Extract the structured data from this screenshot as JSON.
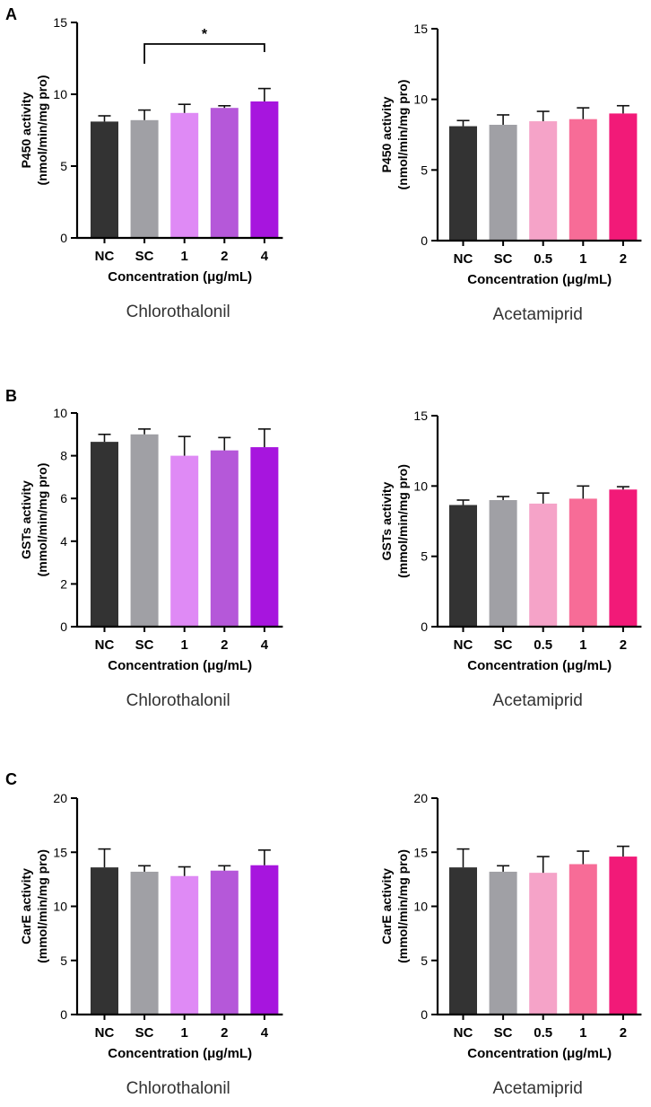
{
  "panel_labels": [
    "A",
    "B",
    "C"
  ],
  "chart_data": [
    {
      "type": "bar",
      "panel": "A",
      "title": "Chlorothalonil",
      "xlabel": "Concentration (μg/mL)",
      "ylabel_line1": "P450 activity",
      "ylabel_line2": "(nmol/min/mg pro)",
      "categories": [
        "NC",
        "SC",
        "1",
        "2",
        "4"
      ],
      "values": [
        8.1,
        8.2,
        8.7,
        9.05,
        9.5
      ],
      "errors": [
        0.4,
        0.7,
        0.6,
        0.15,
        0.9
      ],
      "colors": [
        "#333333",
        "#a0a0a5",
        "#df8af5",
        "#b558d9",
        "#a715de"
      ],
      "ylim": [
        0,
        15
      ],
      "yticks": [
        0,
        5,
        10,
        15
      ],
      "ytick_labels": [
        "0",
        "5",
        "10",
        "15"
      ],
      "significance": {
        "from": 1,
        "to": 4,
        "label": "*",
        "level": 13.5
      }
    },
    {
      "type": "bar",
      "panel": "A",
      "title": "Acetamiprid",
      "xlabel": "Concentration (μg/mL)",
      "ylabel_line1": "P450 activity",
      "ylabel_line2": "(nmol/min/mg pro)",
      "categories": [
        "NC",
        "SC",
        "0.5",
        "1",
        "2"
      ],
      "values": [
        8.1,
        8.2,
        8.45,
        8.6,
        9.0
      ],
      "errors": [
        0.4,
        0.7,
        0.7,
        0.8,
        0.55
      ],
      "colors": [
        "#333333",
        "#a0a0a5",
        "#f5a3c8",
        "#f76c97",
        "#f21a78"
      ],
      "ylim": [
        0,
        15
      ],
      "yticks": [
        0,
        5,
        10,
        15
      ],
      "ytick_labels": [
        "0",
        "5",
        "10",
        "15"
      ]
    },
    {
      "type": "bar",
      "panel": "B",
      "title": "Chlorothalonil",
      "xlabel": "Concentration (μg/mL)",
      "ylabel_line1": "GSTs activity",
      "ylabel_line2": "(mmol/min/mg pro)",
      "categories": [
        "NC",
        "SC",
        "1",
        "2",
        "4"
      ],
      "values": [
        8.65,
        9.0,
        8.0,
        8.25,
        8.4
      ],
      "errors": [
        0.35,
        0.25,
        0.9,
        0.6,
        0.85
      ],
      "colors": [
        "#333333",
        "#a0a0a5",
        "#df8af5",
        "#b558d9",
        "#a715de"
      ],
      "ylim": [
        0,
        10
      ],
      "yticks": [
        0,
        2,
        4,
        6,
        8,
        10
      ],
      "ytick_labels": [
        "0",
        "2",
        "4",
        "6",
        "8",
        "10"
      ]
    },
    {
      "type": "bar",
      "panel": "B",
      "title": "Acetamiprid",
      "xlabel": "Concentration (μg/mL)",
      "ylabel_line1": "GSTs activity",
      "ylabel_line2": "(mmol/min/mg pro)",
      "categories": [
        "NC",
        "SC",
        "0.5",
        "1",
        "2"
      ],
      "values": [
        8.65,
        9.0,
        8.75,
        9.1,
        9.75
      ],
      "errors": [
        0.35,
        0.25,
        0.75,
        0.9,
        0.2
      ],
      "colors": [
        "#333333",
        "#a0a0a5",
        "#f5a3c8",
        "#f76c97",
        "#f21a78"
      ],
      "ylim": [
        0,
        15
      ],
      "yticks": [
        0,
        5,
        10,
        15
      ],
      "ytick_labels": [
        "0",
        "5",
        "10",
        "15"
      ]
    },
    {
      "type": "bar",
      "panel": "C",
      "title": "Chlorothalonil",
      "xlabel": "Concentration (μg/mL)",
      "ylabel_line1": "CarE activity",
      "ylabel_line2": "(mmol/min/mg pro)",
      "categories": [
        "NC",
        "SC",
        "1",
        "2",
        "4"
      ],
      "values": [
        13.6,
        13.2,
        12.8,
        13.3,
        13.8
      ],
      "errors": [
        1.7,
        0.55,
        0.85,
        0.45,
        1.4
      ],
      "colors": [
        "#333333",
        "#a0a0a5",
        "#df8af5",
        "#b558d9",
        "#a715de"
      ],
      "ylim": [
        0,
        20
      ],
      "yticks": [
        0,
        5,
        10,
        15,
        20
      ],
      "ytick_labels": [
        "0",
        "5",
        "10",
        "15",
        "20"
      ]
    },
    {
      "type": "bar",
      "panel": "C",
      "title": "Acetamiprid",
      "xlabel": "Concentration (μg/mL)",
      "ylabel_line1": "CarE activity",
      "ylabel_line2": "(mmol/min/mg pro)",
      "categories": [
        "NC",
        "SC",
        "0.5",
        "1",
        "2"
      ],
      "values": [
        13.6,
        13.2,
        13.1,
        13.9,
        14.6
      ],
      "errors": [
        1.7,
        0.55,
        1.5,
        1.2,
        0.95
      ],
      "colors": [
        "#333333",
        "#a0a0a5",
        "#f5a3c8",
        "#f76c97",
        "#f21a78"
      ],
      "ylim": [
        0,
        20
      ],
      "yticks": [
        0,
        5,
        10,
        15,
        20
      ],
      "ytick_labels": [
        "0",
        "5",
        "10",
        "15",
        "20"
      ]
    }
  ]
}
